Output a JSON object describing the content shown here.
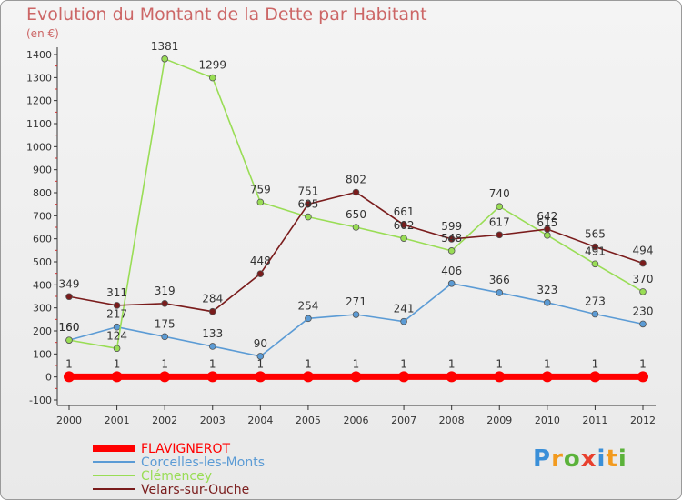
{
  "title": "Evolution du Montant de la Dette par Habitant",
  "subtitle": "(en €)",
  "logo": "Proxiti",
  "chart_data": {
    "type": "line",
    "x": [
      "2000",
      "2001",
      "2002",
      "2003",
      "2004",
      "2005",
      "2006",
      "2007",
      "2008",
      "2009",
      "2010",
      "2011",
      "2012"
    ],
    "ylim": [
      -100,
      1400
    ],
    "yticks": [
      -100,
      0,
      100,
      200,
      300,
      400,
      500,
      600,
      700,
      800,
      900,
      1000,
      1100,
      1200,
      1300,
      1400
    ],
    "grid": false,
    "legend_position": "bottom-left",
    "series": [
      {
        "name": "FLAVIGNEROT",
        "color": "#ff0000",
        "values": [
          1,
          1,
          1,
          1,
          1,
          1,
          1,
          1,
          1,
          1,
          1,
          1,
          1
        ],
        "labels": [
          "1",
          "1",
          "1",
          "1",
          "1",
          "1",
          "1",
          "1",
          "1",
          "1",
          "1",
          "1",
          "1"
        ]
      },
      {
        "name": "Corcelles-les-Monts",
        "color": "#5b9bd5",
        "values": [
          160,
          217,
          175,
          133,
          90,
          254,
          271,
          241,
          406,
          366,
          323,
          273,
          230
        ],
        "labels": [
          "160",
          "217",
          "175",
          "133",
          "90",
          "254",
          "271",
          "241",
          "406",
          "366",
          "323",
          "273",
          "230"
        ]
      },
      {
        "name": "Clémencey",
        "color": "#99dd55",
        "values": [
          160,
          124,
          1381,
          1299,
          759,
          695,
          650,
          602,
          548,
          740,
          615,
          491,
          370
        ],
        "labels": [
          "160",
          "124",
          "1381",
          "1299",
          "759",
          "695",
          "650",
          "602",
          "548",
          "740",
          "615",
          "491",
          "370"
        ]
      },
      {
        "name": "Velars-sur-Ouche",
        "color": "#7a1c1c",
        "values": [
          349,
          311,
          319,
          284,
          448,
          751,
          802,
          661,
          599,
          617,
          642,
          565,
          494
        ],
        "labels": [
          "349",
          "311",
          "319",
          "284",
          "448",
          "751",
          "802",
          "661",
          "599",
          "617",
          "642",
          "565",
          "494"
        ]
      }
    ]
  }
}
